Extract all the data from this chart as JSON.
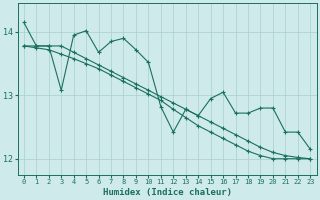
{
  "xlabel": "Humidex (Indice chaleur)",
  "ylabel": "",
  "background_color": "#ceeaea",
  "grid_color": "#a8cfcf",
  "line_color": "#1a7060",
  "xlim": [
    -0.5,
    23.5
  ],
  "ylim": [
    11.75,
    14.45
  ],
  "yticks": [
    12,
    13,
    14
  ],
  "xticks": [
    0,
    1,
    2,
    3,
    4,
    5,
    6,
    7,
    8,
    9,
    10,
    11,
    12,
    13,
    14,
    15,
    16,
    17,
    18,
    19,
    20,
    21,
    22,
    23
  ],
  "series1_x": [
    0,
    1,
    2,
    3,
    4,
    5,
    6,
    7,
    8,
    9,
    10,
    11,
    12,
    13,
    14,
    15,
    16,
    17,
    18,
    19,
    20,
    21,
    22,
    23
  ],
  "series1_y": [
    14.15,
    13.78,
    13.78,
    13.08,
    13.95,
    14.02,
    13.68,
    13.85,
    13.9,
    13.72,
    13.52,
    12.82,
    12.42,
    12.78,
    12.68,
    12.95,
    13.05,
    12.72,
    12.72,
    12.8,
    12.8,
    12.42,
    12.42,
    12.15
  ],
  "series2_x": [
    0,
    1,
    2,
    3,
    4,
    5,
    6,
    7,
    8,
    9,
    10,
    11,
    12,
    13,
    14,
    15,
    16,
    17,
    18,
    19,
    20,
    21,
    22,
    23
  ],
  "series2_y": [
    13.78,
    13.78,
    13.78,
    13.78,
    13.68,
    13.58,
    13.48,
    13.38,
    13.28,
    13.18,
    13.08,
    12.98,
    12.88,
    12.78,
    12.68,
    12.58,
    12.48,
    12.38,
    12.28,
    12.18,
    12.1,
    12.05,
    12.02,
    12.0
  ],
  "series3_x": [
    0,
    1,
    2,
    3,
    4,
    5,
    6,
    7,
    8,
    9,
    10,
    11,
    12,
    13,
    14,
    15,
    16,
    17,
    18,
    19,
    20,
    21,
    22,
    23
  ],
  "series3_y": [
    13.78,
    13.75,
    13.72,
    13.65,
    13.58,
    13.5,
    13.42,
    13.32,
    13.22,
    13.12,
    13.02,
    12.92,
    12.78,
    12.65,
    12.52,
    12.42,
    12.32,
    12.22,
    12.12,
    12.05,
    12.0,
    12.0,
    12.0,
    12.0
  ]
}
